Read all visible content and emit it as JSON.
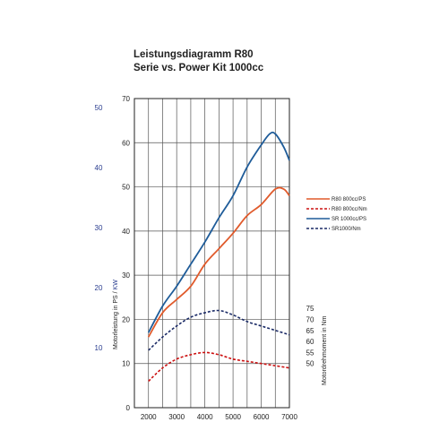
{
  "chart_data": {
    "type": "line",
    "title": "Leistungsdiagramm R80",
    "subtitle": "Serie vs. Power Kit 1000cc",
    "x_ticks": [
      "2000",
      "3000",
      "4000",
      "5000",
      "6000",
      "7000"
    ],
    "xlim": [
      1500,
      7000
    ],
    "ylim": [
      0,
      70
    ],
    "y_ticks_left": [
      "0",
      "10",
      "20",
      "30",
      "40",
      "50",
      "60",
      "70"
    ],
    "kw_ticks": [
      "10",
      "20",
      "30",
      "40",
      "50"
    ],
    "kw_axis_label_prefix": "Motorleistung in PS / ",
    "kw_axis_label_kw": "KW",
    "torque_axis_label": "Motordrehmoment in Nm",
    "torque_ticks": [
      "50",
      "55",
      "60",
      "65",
      "70",
      "75"
    ],
    "torque_mapping": {
      "nm_at_zero_ps": 30,
      "nm_per_ps": 2.0
    },
    "kw_mapping": {
      "kw_per_ps": 0.7353
    },
    "grid": true,
    "legend_position": "right",
    "colors": {
      "r80": "#e05a2b",
      "sr": "#1f5c99",
      "r80_nm": "#cc1111",
      "sr_nm": "#1a2a66"
    },
    "series": [
      {
        "name": "R80 800cc/PS",
        "color": "#e05a2b",
        "style": "solid",
        "x": [
          2000,
          2500,
          3000,
          3500,
          4000,
          4500,
          5000,
          5500,
          6000,
          6500,
          6800,
          7000
        ],
        "y": [
          16,
          21.5,
          24.5,
          27.5,
          32.5,
          36,
          39.5,
          43.5,
          46,
          49.5,
          49.5,
          48
        ]
      },
      {
        "name": "R80 800cc/Nm",
        "color": "#cc1111",
        "style": "dashed",
        "x": [
          2000,
          2500,
          3000,
          3500,
          4000,
          4500,
          5000,
          5500,
          6000,
          6500,
          7000
        ],
        "y": [
          6,
          9,
          11,
          12,
          12.5,
          12,
          11,
          10.5,
          10,
          9.5,
          9
        ]
      },
      {
        "name": "SR 1000cc/PS",
        "color": "#1f5c99",
        "style": "solid",
        "x": [
          2000,
          2500,
          3000,
          3500,
          4000,
          4500,
          5000,
          5500,
          6000,
          6300,
          6500,
          6800,
          7000
        ],
        "y": [
          17,
          23,
          27.5,
          32.5,
          37.5,
          43,
          48,
          54.5,
          59.5,
          62,
          62,
          59,
          56
        ]
      },
      {
        "name": "SR1000/Nm",
        "color": "#1a2a66",
        "style": "dashed",
        "x": [
          2000,
          2500,
          3000,
          3500,
          4000,
          4500,
          5000,
          5500,
          6000,
          6500,
          7000
        ],
        "y": [
          13,
          16,
          18.5,
          20.5,
          21.5,
          22,
          21,
          19.5,
          18.5,
          17.5,
          16.5
        ]
      }
    ]
  }
}
